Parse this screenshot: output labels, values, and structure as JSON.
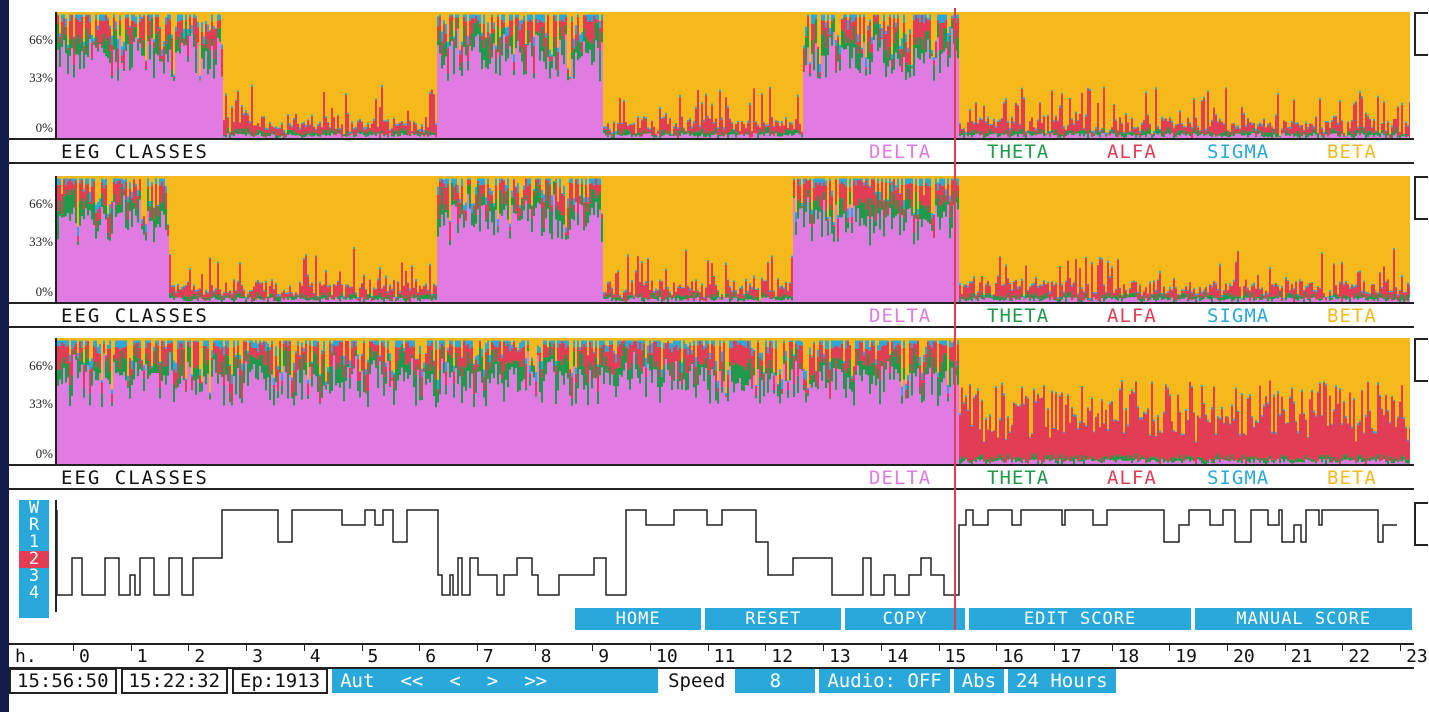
{
  "colors": {
    "delta": "#e07be3",
    "theta": "#1e9a4a",
    "alfa": "#e23d55",
    "sigma": "#29a8dc",
    "beta": "#f6b91c"
  },
  "yticks": [
    "66%",
    "33%",
    "0%"
  ],
  "panels": [
    {
      "title": "EEG CLASSES",
      "legend": [
        "DELTA",
        "THETA",
        "ALFA",
        "SIGMA",
        "BETA"
      ]
    },
    {
      "title": "EEG CLASSES",
      "legend": [
        "DELTA",
        "THETA",
        "ALFA",
        "SIGMA",
        "BETA"
      ]
    },
    {
      "title": "EEG CLASSES",
      "legend": [
        "DELTA",
        "THETA",
        "ALFA",
        "SIGMA",
        "BETA"
      ]
    }
  ],
  "hypnogram": {
    "stages": [
      "W",
      "R",
      "1",
      "2",
      "3",
      "4"
    ],
    "highlighted": "2"
  },
  "buttons": [
    "HOME",
    "RESET",
    "COPY",
    "EDIT SCORE",
    "MANUAL SCORE"
  ],
  "timeaxis": {
    "unit": "h.",
    "hours": [
      "0",
      "1",
      "2",
      "3",
      "4",
      "5",
      "6",
      "7",
      "8",
      "9",
      "10",
      "11",
      "12",
      "13",
      "14",
      "15",
      "16",
      "17",
      "18",
      "19",
      "20",
      "21",
      "22",
      "23"
    ]
  },
  "status": {
    "clock": "15:56:50",
    "cursor_time": "15:22:32",
    "epoch": "Ep:1913",
    "mode": "Aut",
    "nav": [
      "<<",
      "<",
      ">",
      ">>"
    ],
    "speed_label": "Speed",
    "speed_value": "8",
    "audio": "Audio: OFF",
    "abs": "Abs",
    "range": "24 Hours"
  }
}
